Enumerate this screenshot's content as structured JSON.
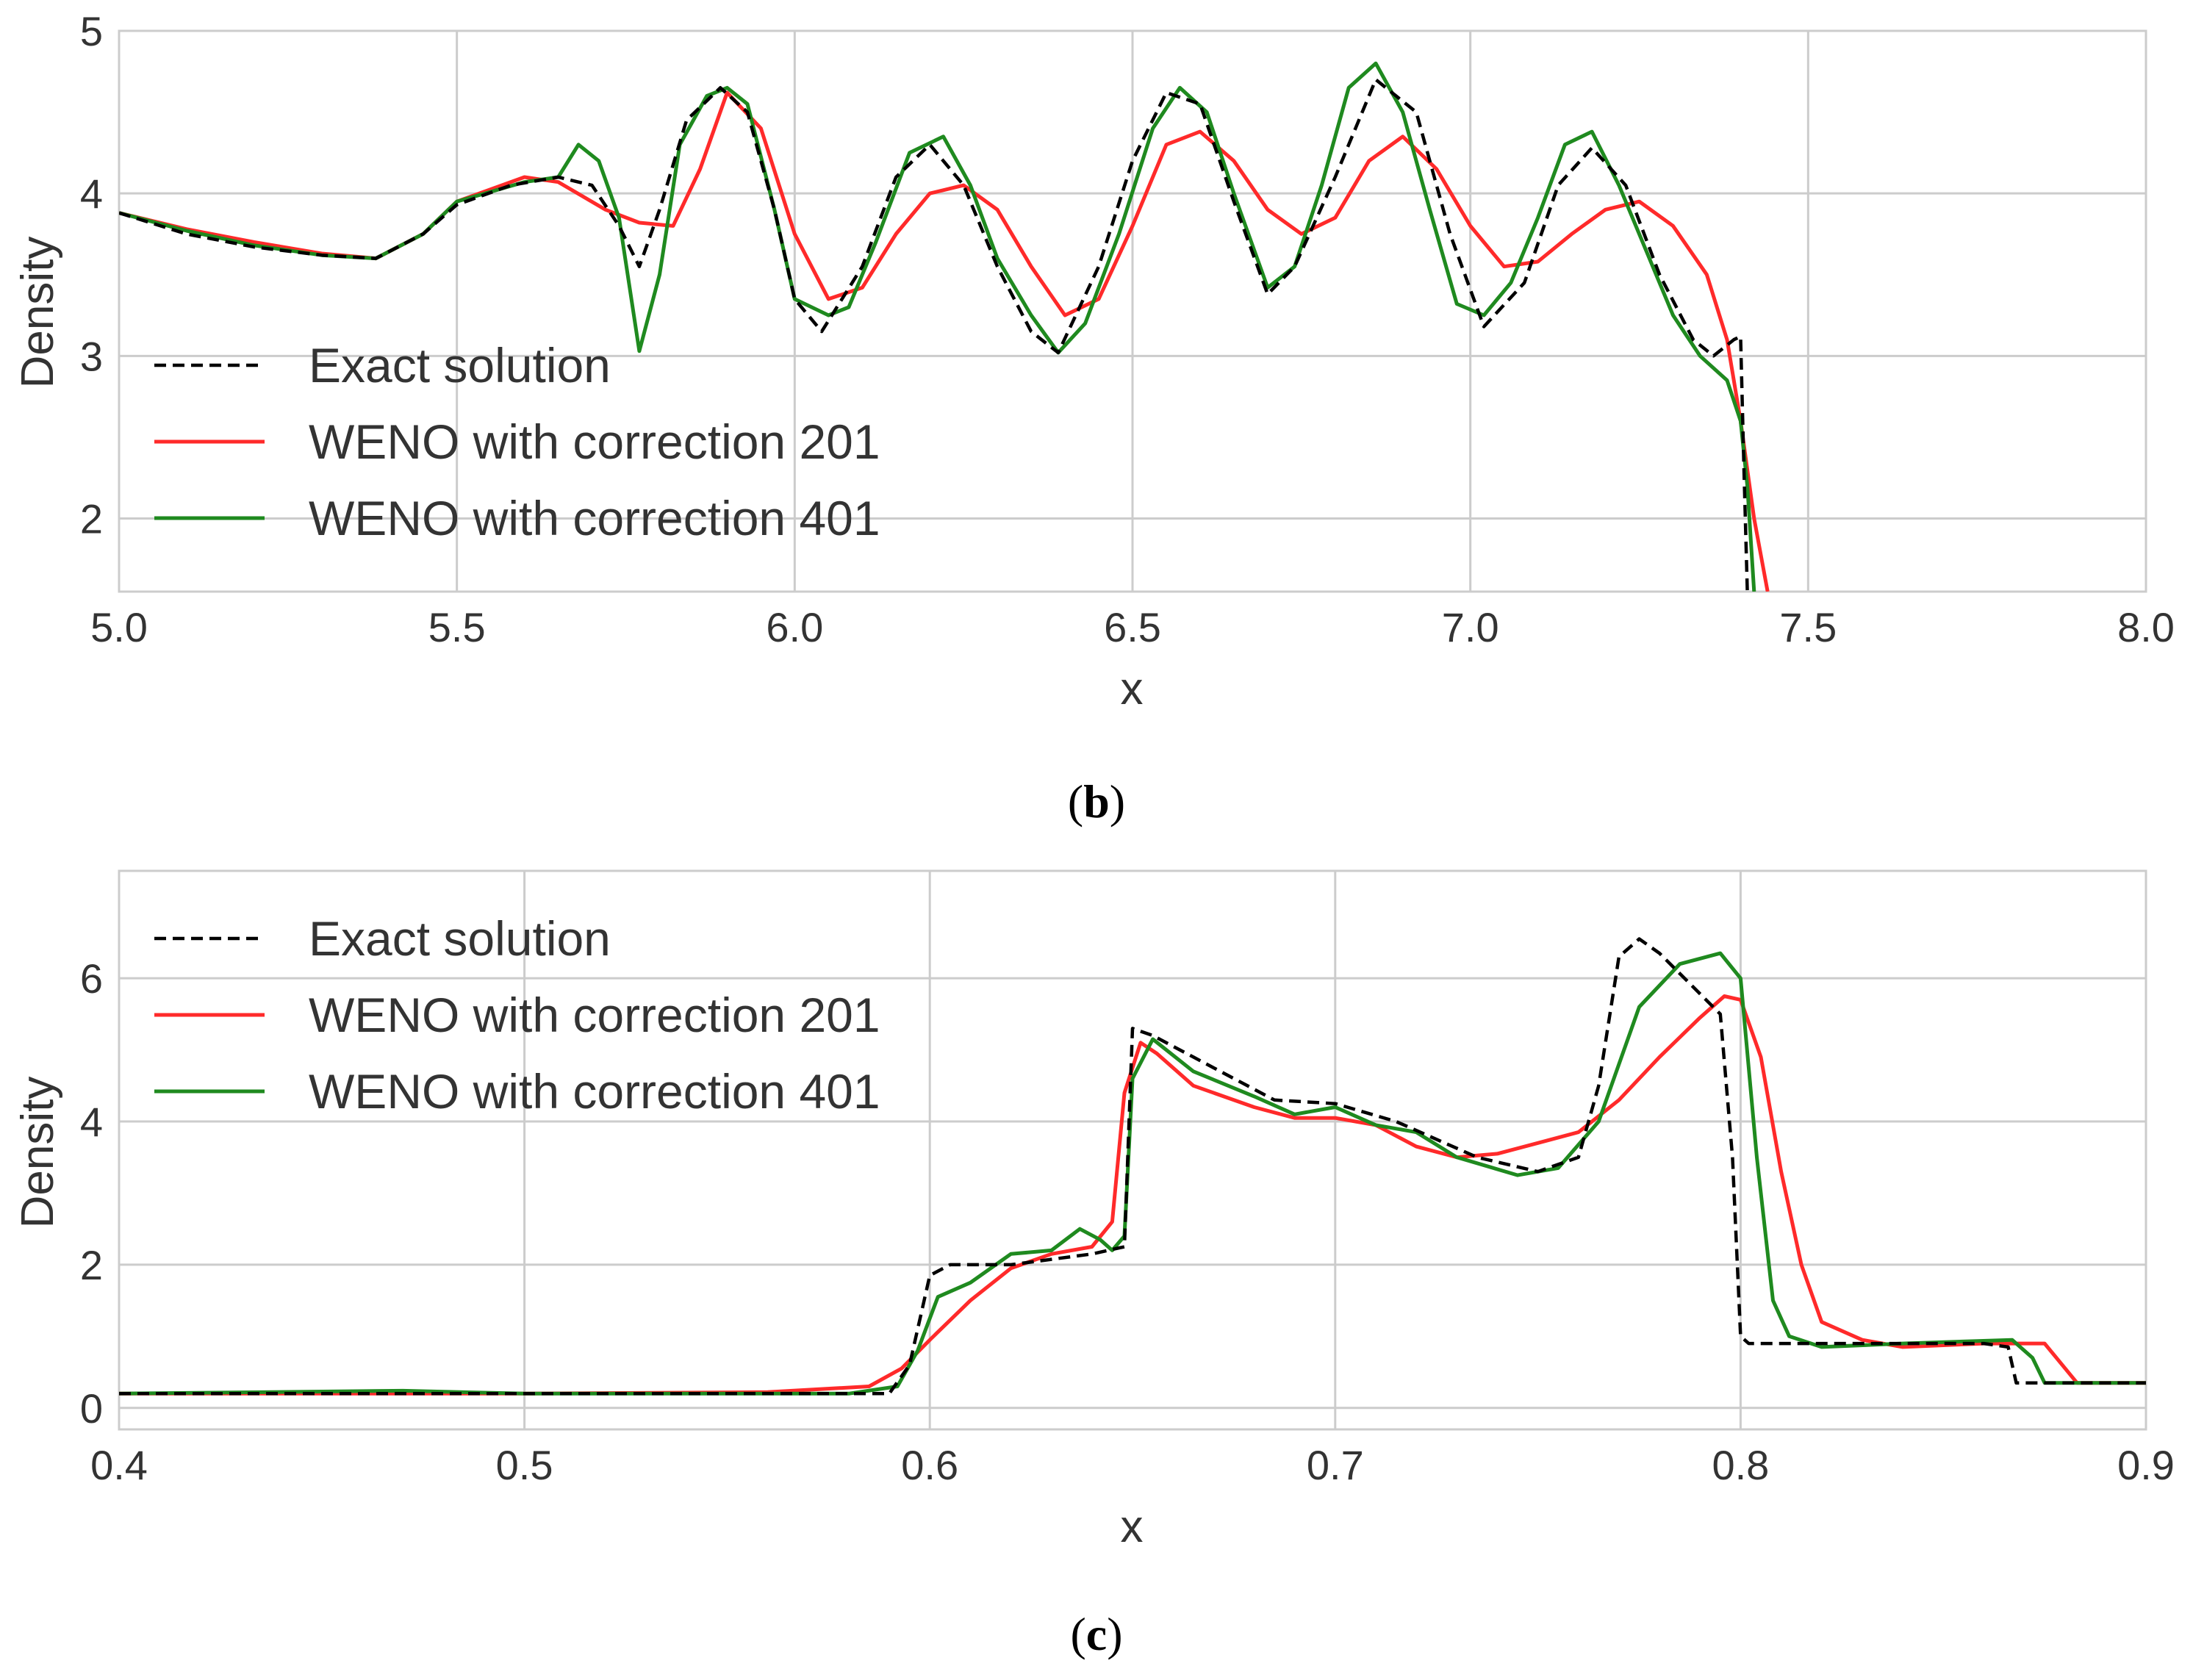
{
  "chart_data": [
    {
      "type": "line",
      "caption": "b",
      "xlabel": "x",
      "ylabel": "Density",
      "xlim": [
        5.0,
        8.0
      ],
      "ylim": [
        1.55,
        5.0
      ],
      "grid": true,
      "legend_position": "lower-left",
      "xticks": [
        5.0,
        5.5,
        6.0,
        6.5,
        7.0,
        7.5,
        8.0
      ],
      "xtick_labels": [
        "5.0",
        "5.5",
        "6.0",
        "6.5",
        "7.0",
        "7.5",
        "8.0"
      ],
      "yticks": [
        2,
        3,
        4,
        5
      ],
      "ytick_labels": [
        "2",
        "3",
        "4",
        "5"
      ],
      "series": [
        {
          "name": "Exact solution",
          "color": "#000000",
          "style": "dashed",
          "x": [
            5.0,
            5.1,
            5.2,
            5.3,
            5.38,
            5.45,
            5.5,
            5.58,
            5.65,
            5.7,
            5.74,
            5.77,
            5.8,
            5.84,
            5.89,
            5.93,
            5.97,
            6.0,
            6.04,
            6.1,
            6.15,
            6.2,
            6.25,
            6.3,
            6.35,
            6.39,
            6.45,
            6.5,
            6.55,
            6.6,
            6.65,
            6.7,
            6.74,
            6.8,
            6.86,
            6.92,
            6.97,
            7.02,
            7.08,
            7.13,
            7.18,
            7.23,
            7.28,
            7.33,
            7.36,
            7.39,
            7.4,
            7.405,
            7.41
          ],
          "values": [
            3.88,
            3.75,
            3.67,
            3.62,
            3.6,
            3.75,
            3.93,
            4.05,
            4.1,
            4.05,
            3.8,
            3.55,
            3.9,
            4.45,
            4.65,
            4.5,
            3.9,
            3.35,
            3.15,
            3.55,
            4.1,
            4.3,
            4.05,
            3.55,
            3.15,
            3.02,
            3.55,
            4.2,
            4.62,
            4.55,
            3.95,
            3.38,
            3.55,
            4.1,
            4.7,
            4.5,
            3.75,
            3.18,
            3.45,
            4.05,
            4.28,
            4.05,
            3.5,
            3.1,
            3.0,
            3.1,
            3.12,
            2.3,
            1.55
          ]
        },
        {
          "name": "WENO with correction 201",
          "color": "#ff2a2a",
          "style": "solid",
          "x": [
            5.0,
            5.1,
            5.2,
            5.3,
            5.38,
            5.45,
            5.5,
            5.6,
            5.65,
            5.72,
            5.77,
            5.82,
            5.86,
            5.9,
            5.95,
            6.0,
            6.05,
            6.1,
            6.15,
            6.2,
            6.25,
            6.3,
            6.35,
            6.4,
            6.45,
            6.5,
            6.55,
            6.6,
            6.65,
            6.7,
            6.75,
            6.8,
            6.85,
            6.9,
            6.95,
            7.0,
            7.05,
            7.1,
            7.15,
            7.2,
            7.25,
            7.3,
            7.35,
            7.38,
            7.4,
            7.42,
            7.44
          ],
          "values": [
            3.88,
            3.78,
            3.7,
            3.63,
            3.6,
            3.75,
            3.95,
            4.1,
            4.07,
            3.9,
            3.82,
            3.8,
            4.15,
            4.62,
            4.4,
            3.75,
            3.35,
            3.42,
            3.75,
            4.0,
            4.05,
            3.9,
            3.55,
            3.25,
            3.35,
            3.8,
            4.3,
            4.38,
            4.2,
            3.9,
            3.75,
            3.85,
            4.2,
            4.35,
            4.15,
            3.8,
            3.55,
            3.58,
            3.75,
            3.9,
            3.95,
            3.8,
            3.5,
            3.1,
            2.6,
            2.0,
            1.55
          ]
        },
        {
          "name": "WENO with correction 401",
          "color": "#1f8a1f",
          "style": "solid",
          "x": [
            5.0,
            5.1,
            5.2,
            5.3,
            5.38,
            5.45,
            5.5,
            5.6,
            5.65,
            5.68,
            5.71,
            5.74,
            5.77,
            5.8,
            5.83,
            5.87,
            5.9,
            5.93,
            5.97,
            6.0,
            6.05,
            6.08,
            6.12,
            6.17,
            6.22,
            6.26,
            6.3,
            6.35,
            6.39,
            6.43,
            6.48,
            6.53,
            6.57,
            6.61,
            6.65,
            6.7,
            6.74,
            6.78,
            6.82,
            6.86,
            6.9,
            6.94,
            6.98,
            7.02,
            7.06,
            7.1,
            7.14,
            7.18,
            7.22,
            7.26,
            7.3,
            7.34,
            7.38,
            7.4,
            7.41,
            7.42
          ],
          "values": [
            3.88,
            3.77,
            3.68,
            3.62,
            3.6,
            3.75,
            3.95,
            4.07,
            4.1,
            4.3,
            4.2,
            3.85,
            3.03,
            3.5,
            4.3,
            4.6,
            4.65,
            4.55,
            3.9,
            3.35,
            3.25,
            3.3,
            3.7,
            4.25,
            4.35,
            4.05,
            3.6,
            3.25,
            3.02,
            3.2,
            3.75,
            4.4,
            4.65,
            4.5,
            4.0,
            3.42,
            3.55,
            4.05,
            4.65,
            4.8,
            4.5,
            3.9,
            3.32,
            3.25,
            3.45,
            3.85,
            4.3,
            4.38,
            4.05,
            3.65,
            3.25,
            3.0,
            2.85,
            2.6,
            2.2,
            1.55
          ]
        }
      ]
    },
    {
      "type": "line",
      "caption": "c",
      "xlabel": "x",
      "ylabel": "Density",
      "xlim": [
        0.4,
        0.9
      ],
      "ylim": [
        -0.3,
        7.5
      ],
      "grid": true,
      "legend_position": "upper-left",
      "xticks": [
        0.4,
        0.5,
        0.6,
        0.7,
        0.8,
        0.9
      ],
      "xtick_labels": [
        "0.4",
        "0.5",
        "0.6",
        "0.7",
        "0.8",
        "0.9"
      ],
      "yticks": [
        0,
        2,
        4,
        6
      ],
      "ytick_labels": [
        "0",
        "2",
        "4",
        "6"
      ],
      "series": [
        {
          "name": "Exact solution",
          "color": "#000000",
          "style": "dashed",
          "x": [
            0.4,
            0.59,
            0.595,
            0.6,
            0.605,
            0.62,
            0.64,
            0.648,
            0.65,
            0.655,
            0.665,
            0.685,
            0.7,
            0.715,
            0.735,
            0.75,
            0.76,
            0.765,
            0.77,
            0.775,
            0.78,
            0.795,
            0.798,
            0.8,
            0.802,
            0.86,
            0.866,
            0.868,
            0.9
          ],
          "values": [
            0.2,
            0.2,
            0.6,
            1.85,
            2.0,
            2.0,
            2.15,
            2.25,
            5.3,
            5.2,
            4.9,
            4.3,
            4.25,
            4.0,
            3.5,
            3.3,
            3.5,
            4.5,
            6.3,
            6.55,
            6.35,
            5.5,
            3.5,
            1.0,
            0.9,
            0.9,
            0.85,
            0.35,
            0.35
          ]
        },
        {
          "name": "WENO with correction 201",
          "color": "#ff2a2a",
          "style": "solid",
          "x": [
            0.4,
            0.5,
            0.56,
            0.585,
            0.593,
            0.6,
            0.61,
            0.62,
            0.63,
            0.64,
            0.645,
            0.648,
            0.652,
            0.656,
            0.665,
            0.68,
            0.69,
            0.7,
            0.71,
            0.72,
            0.73,
            0.74,
            0.75,
            0.76,
            0.77,
            0.78,
            0.79,
            0.796,
            0.8,
            0.805,
            0.81,
            0.815,
            0.82,
            0.83,
            0.84,
            0.86,
            0.875,
            0.883,
            0.9
          ],
          "values": [
            0.2,
            0.2,
            0.22,
            0.3,
            0.55,
            0.95,
            1.5,
            1.95,
            2.15,
            2.25,
            2.6,
            4.4,
            5.1,
            4.95,
            4.5,
            4.2,
            4.05,
            4.05,
            3.95,
            3.65,
            3.5,
            3.55,
            3.7,
            3.85,
            4.3,
            4.9,
            5.45,
            5.75,
            5.7,
            4.9,
            3.3,
            2.0,
            1.2,
            0.95,
            0.85,
            0.9,
            0.9,
            0.35,
            0.35
          ]
        },
        {
          "name": "WENO with correction 401",
          "color": "#1f8a1f",
          "style": "solid",
          "x": [
            0.4,
            0.47,
            0.5,
            0.58,
            0.592,
            0.597,
            0.602,
            0.61,
            0.62,
            0.63,
            0.637,
            0.642,
            0.645,
            0.648,
            0.65,
            0.655,
            0.665,
            0.68,
            0.69,
            0.7,
            0.71,
            0.72,
            0.73,
            0.745,
            0.755,
            0.765,
            0.775,
            0.785,
            0.795,
            0.8,
            0.804,
            0.808,
            0.812,
            0.82,
            0.84,
            0.867,
            0.872,
            0.875,
            0.9
          ],
          "values": [
            0.2,
            0.24,
            0.2,
            0.2,
            0.3,
            0.8,
            1.55,
            1.75,
            2.15,
            2.2,
            2.5,
            2.35,
            2.2,
            2.4,
            4.6,
            5.15,
            4.7,
            4.35,
            4.1,
            4.2,
            3.95,
            3.85,
            3.5,
            3.25,
            3.35,
            4.0,
            5.6,
            6.2,
            6.35,
            6.0,
            3.5,
            1.5,
            1.0,
            0.85,
            0.9,
            0.95,
            0.7,
            0.35,
            0.35
          ]
        }
      ]
    }
  ]
}
